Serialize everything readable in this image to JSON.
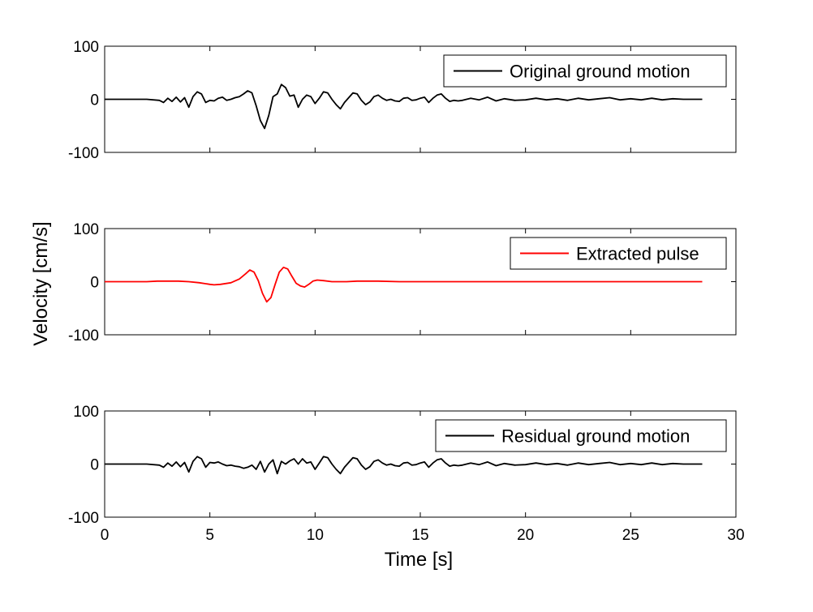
{
  "figure": {
    "ylabel": "Velocity [cm/s]",
    "xlabel": "Time [s]"
  },
  "chart_data": [
    {
      "type": "line",
      "title": "",
      "xlabel": "",
      "ylabel": "",
      "xlim": [
        0,
        30
      ],
      "ylim": [
        -100,
        100
      ],
      "xticks": [
        0,
        5,
        10,
        15,
        20,
        25,
        30
      ],
      "xtick_labels_shown": false,
      "yticks": [
        -100,
        0,
        100
      ],
      "grid": false,
      "legend_position": "top-right",
      "series": [
        {
          "name": "Original ground motion",
          "color": "#000000",
          "x": [
            0,
            1.0,
            2.0,
            2.6,
            2.8,
            3.0,
            3.2,
            3.4,
            3.6,
            3.8,
            4.0,
            4.2,
            4.4,
            4.6,
            4.8,
            5.0,
            5.2,
            5.4,
            5.6,
            5.8,
            6.0,
            6.2,
            6.4,
            6.6,
            6.8,
            7.0,
            7.2,
            7.4,
            7.6,
            7.8,
            8.0,
            8.2,
            8.4,
            8.6,
            8.8,
            9.0,
            9.2,
            9.4,
            9.6,
            9.8,
            10.0,
            10.2,
            10.4,
            10.6,
            10.8,
            11.0,
            11.2,
            11.4,
            11.6,
            11.8,
            12.0,
            12.2,
            12.4,
            12.6,
            12.8,
            13.0,
            13.2,
            13.4,
            13.6,
            13.8,
            14.0,
            14.2,
            14.4,
            14.6,
            14.8,
            15.0,
            15.2,
            15.4,
            15.6,
            15.8,
            16.0,
            16.2,
            16.4,
            16.6,
            16.8,
            17.0,
            17.4,
            17.8,
            18.2,
            18.6,
            19.0,
            19.5,
            20.0,
            20.5,
            21.0,
            21.5,
            22.0,
            22.5,
            23.0,
            23.5,
            24.0,
            24.5,
            25.0,
            25.5,
            26.0,
            26.5,
            27.0,
            27.5,
            28.0,
            28.4
          ],
          "y": [
            0,
            0,
            0,
            -2,
            -6,
            2,
            -4,
            4,
            -5,
            3,
            -15,
            5,
            14,
            10,
            -6,
            -2,
            -3,
            2,
            4,
            -2,
            0,
            3,
            5,
            10,
            16,
            12,
            -12,
            -40,
            -55,
            -30,
            5,
            10,
            28,
            22,
            6,
            8,
            -15,
            0,
            8,
            5,
            -8,
            2,
            14,
            12,
            0,
            -10,
            -18,
            -6,
            3,
            12,
            10,
            -2,
            -10,
            -5,
            5,
            8,
            2,
            -2,
            0,
            -3,
            -4,
            2,
            3,
            -2,
            -1,
            2,
            4,
            -6,
            2,
            8,
            10,
            2,
            -4,
            -2,
            -3,
            -2,
            2,
            -1,
            4,
            -3,
            1,
            -2,
            -1,
            2,
            -1,
            1,
            -2,
            2,
            -1,
            1,
            3,
            -1,
            1,
            -1,
            2,
            -1,
            1,
            0,
            0,
            0
          ]
        }
      ]
    },
    {
      "type": "line",
      "title": "",
      "xlabel": "",
      "ylabel": "",
      "xlim": [
        0,
        30
      ],
      "ylim": [
        -100,
        100
      ],
      "xticks": [
        0,
        5,
        10,
        15,
        20,
        25,
        30
      ],
      "xtick_labels_shown": false,
      "yticks": [
        -100,
        0,
        100
      ],
      "grid": false,
      "legend_position": "top-right",
      "series": [
        {
          "name": "Extracted pulse",
          "color": "#ff0000",
          "x": [
            0,
            1.0,
            2.0,
            2.5,
            3.0,
            3.5,
            4.0,
            4.5,
            5.0,
            5.2,
            5.5,
            6.0,
            6.4,
            6.7,
            6.9,
            7.1,
            7.3,
            7.5,
            7.7,
            7.9,
            8.1,
            8.3,
            8.5,
            8.7,
            8.9,
            9.1,
            9.3,
            9.5,
            9.7,
            9.9,
            10.1,
            10.4,
            10.8,
            11.5,
            12.0,
            13.0,
            14.0,
            15.0,
            20.0,
            25.0,
            28.4
          ],
          "y": [
            0,
            0,
            0,
            1,
            1,
            1,
            0,
            -2,
            -5,
            -6,
            -5,
            -2,
            5,
            15,
            22,
            18,
            2,
            -22,
            -38,
            -30,
            -5,
            18,
            27,
            24,
            10,
            -3,
            -8,
            -10,
            -5,
            1,
            3,
            2,
            0,
            0,
            1,
            1,
            0,
            0,
            0,
            0,
            0
          ]
        }
      ]
    },
    {
      "type": "line",
      "title": "",
      "xlabel": "Time [s]",
      "ylabel": "",
      "xlim": [
        0,
        30
      ],
      "ylim": [
        -100,
        100
      ],
      "xticks": [
        0,
        5,
        10,
        15,
        20,
        25,
        30
      ],
      "xtick_labels_shown": true,
      "yticks": [
        -100,
        0,
        100
      ],
      "grid": false,
      "legend_position": "top-right",
      "series": [
        {
          "name": "Residual ground motion",
          "color": "#000000",
          "x": [
            0,
            1.0,
            2.0,
            2.6,
            2.8,
            3.0,
            3.2,
            3.4,
            3.6,
            3.8,
            4.0,
            4.2,
            4.4,
            4.6,
            4.8,
            5.0,
            5.2,
            5.4,
            5.6,
            5.8,
            6.0,
            6.2,
            6.4,
            6.6,
            6.8,
            7.0,
            7.2,
            7.4,
            7.6,
            7.8,
            8.0,
            8.2,
            8.4,
            8.6,
            8.8,
            9.0,
            9.2,
            9.4,
            9.6,
            9.8,
            10.0,
            10.2,
            10.4,
            10.6,
            10.8,
            11.0,
            11.2,
            11.4,
            11.6,
            11.8,
            12.0,
            12.2,
            12.4,
            12.6,
            12.8,
            13.0,
            13.2,
            13.4,
            13.6,
            13.8,
            14.0,
            14.2,
            14.4,
            14.6,
            14.8,
            15.0,
            15.2,
            15.4,
            15.6,
            15.8,
            16.0,
            16.2,
            16.4,
            16.6,
            16.8,
            17.0,
            17.4,
            17.8,
            18.2,
            18.6,
            19.0,
            19.5,
            20.0,
            20.5,
            21.0,
            21.5,
            22.0,
            22.5,
            23.0,
            23.5,
            24.0,
            24.5,
            25.0,
            25.5,
            26.0,
            26.5,
            27.0,
            27.5,
            28.0,
            28.4
          ],
          "y": [
            0,
            0,
            0,
            -2,
            -6,
            2,
            -4,
            4,
            -5,
            3,
            -15,
            5,
            14,
            10,
            -6,
            3,
            2,
            4,
            0,
            -3,
            -2,
            -4,
            -5,
            -8,
            -6,
            -2,
            -10,
            5,
            -15,
            0,
            8,
            -18,
            5,
            0,
            6,
            10,
            0,
            10,
            2,
            4,
            -10,
            2,
            14,
            12,
            0,
            -10,
            -18,
            -6,
            3,
            12,
            10,
            -2,
            -10,
            -5,
            5,
            8,
            2,
            -2,
            0,
            -3,
            -4,
            2,
            3,
            -2,
            -1,
            2,
            4,
            -6,
            2,
            8,
            10,
            2,
            -4,
            -2,
            -3,
            -2,
            2,
            -1,
            4,
            -3,
            1,
            -2,
            -1,
            2,
            -1,
            1,
            -2,
            2,
            -1,
            1,
            3,
            -1,
            1,
            -1,
            2,
            -1,
            1,
            0,
            0,
            0
          ]
        }
      ]
    }
  ]
}
